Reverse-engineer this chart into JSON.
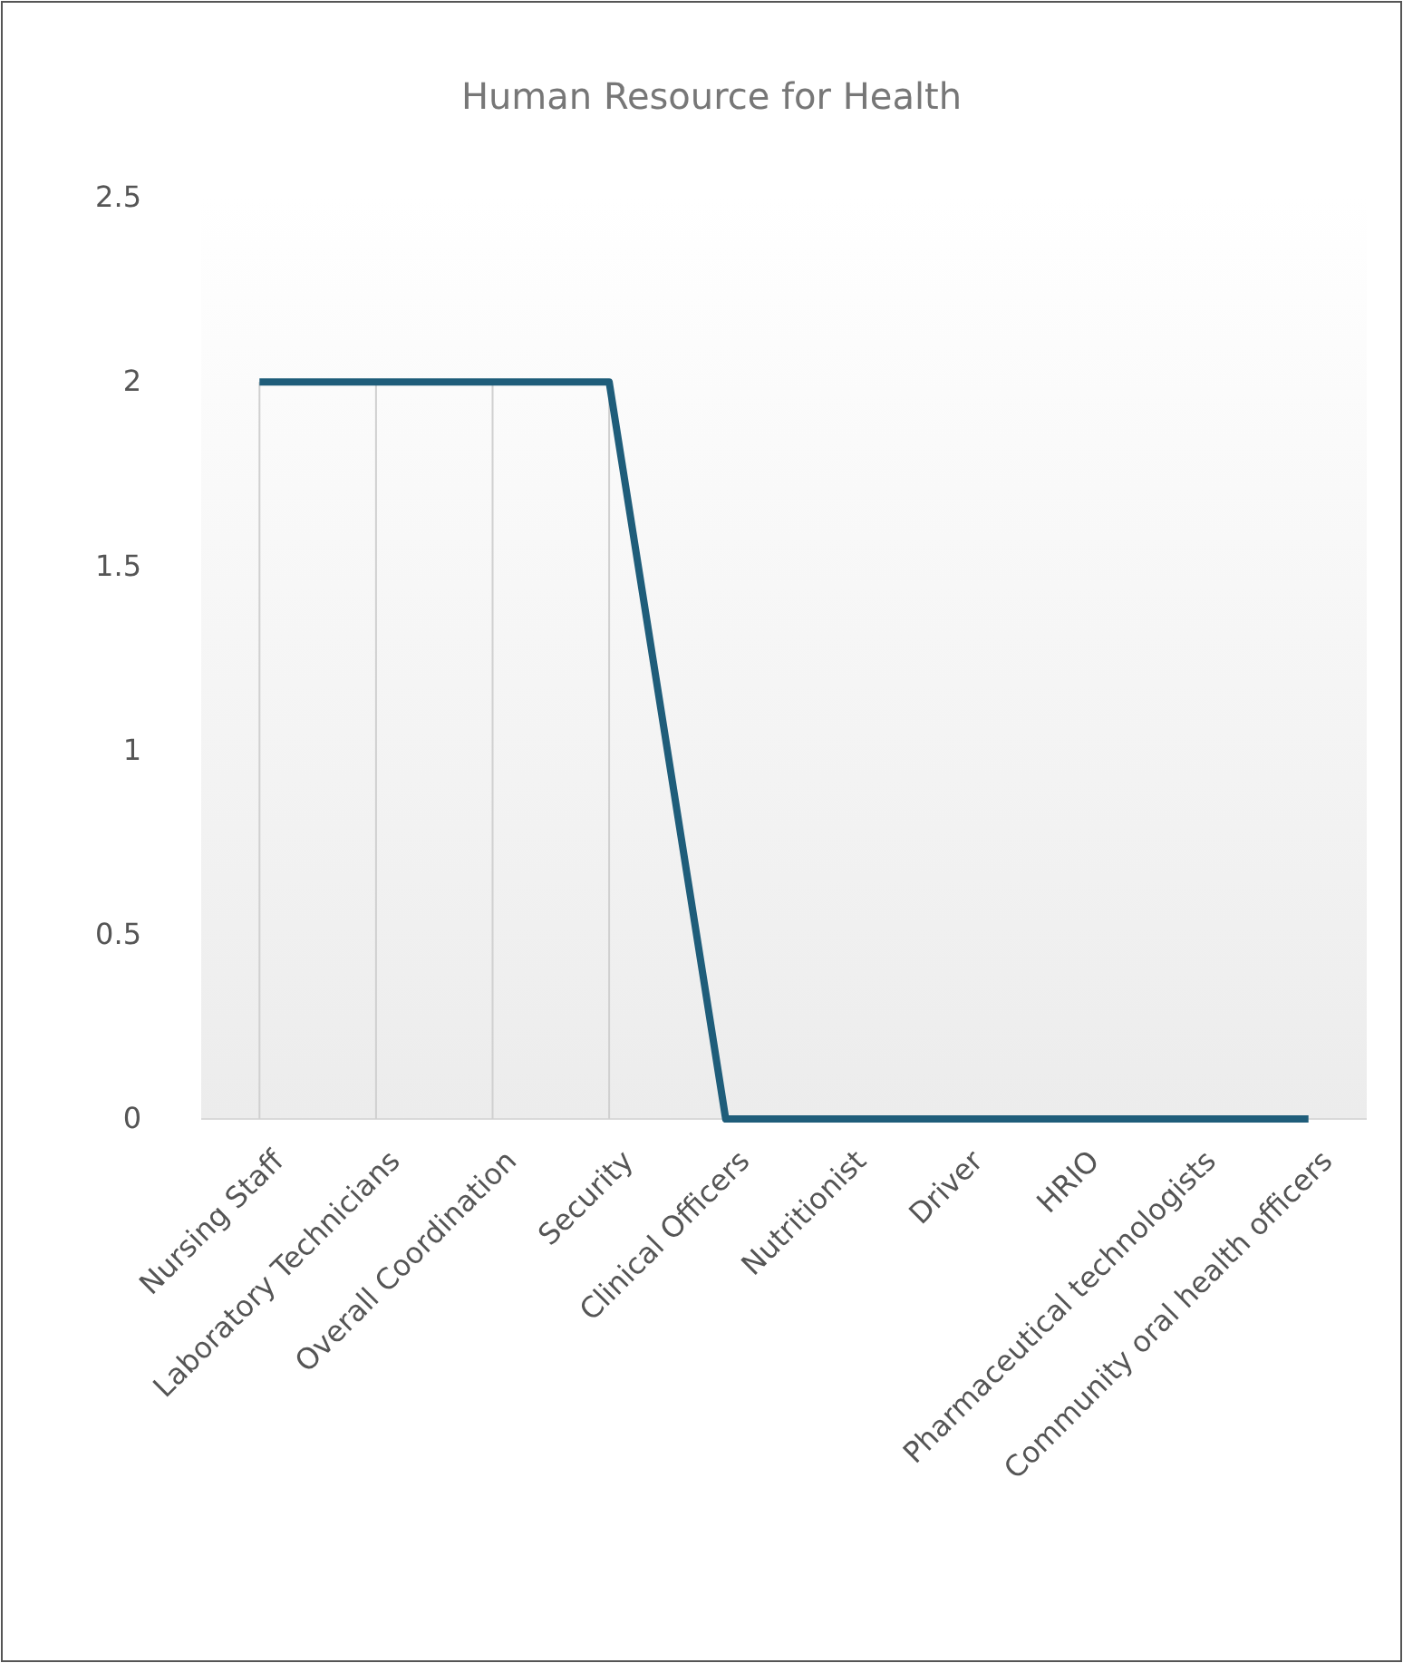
{
  "chart_data": {
    "type": "line",
    "title": "Human  Resource  for Health",
    "categories": [
      "Nursing Staff",
      "Laboratory  Technicians",
      "Overall Coordination",
      "Security",
      "Clinical Officers",
      "Nutritionist",
      "Driver",
      "HRIO",
      "Pharmaceutical  technologists",
      "Community oral health officers"
    ],
    "series": [
      {
        "color": "#1f5d7a",
        "values": [
          2,
          2,
          2,
          2,
          0,
          0,
          0,
          0,
          0,
          0
        ],
        "errors": [
          [
            0,
            2
          ],
          [
            0,
            2
          ],
          [
            0,
            2
          ],
          [
            0,
            2
          ],
          null,
          null,
          null,
          null,
          null,
          null
        ]
      }
    ],
    "ylim": [
      0,
      2.5
    ],
    "yticks": [
      0,
      0.5,
      1,
      1.5,
      2,
      2.5
    ],
    "grid": false,
    "marker": "none",
    "line_style": "solid"
  }
}
